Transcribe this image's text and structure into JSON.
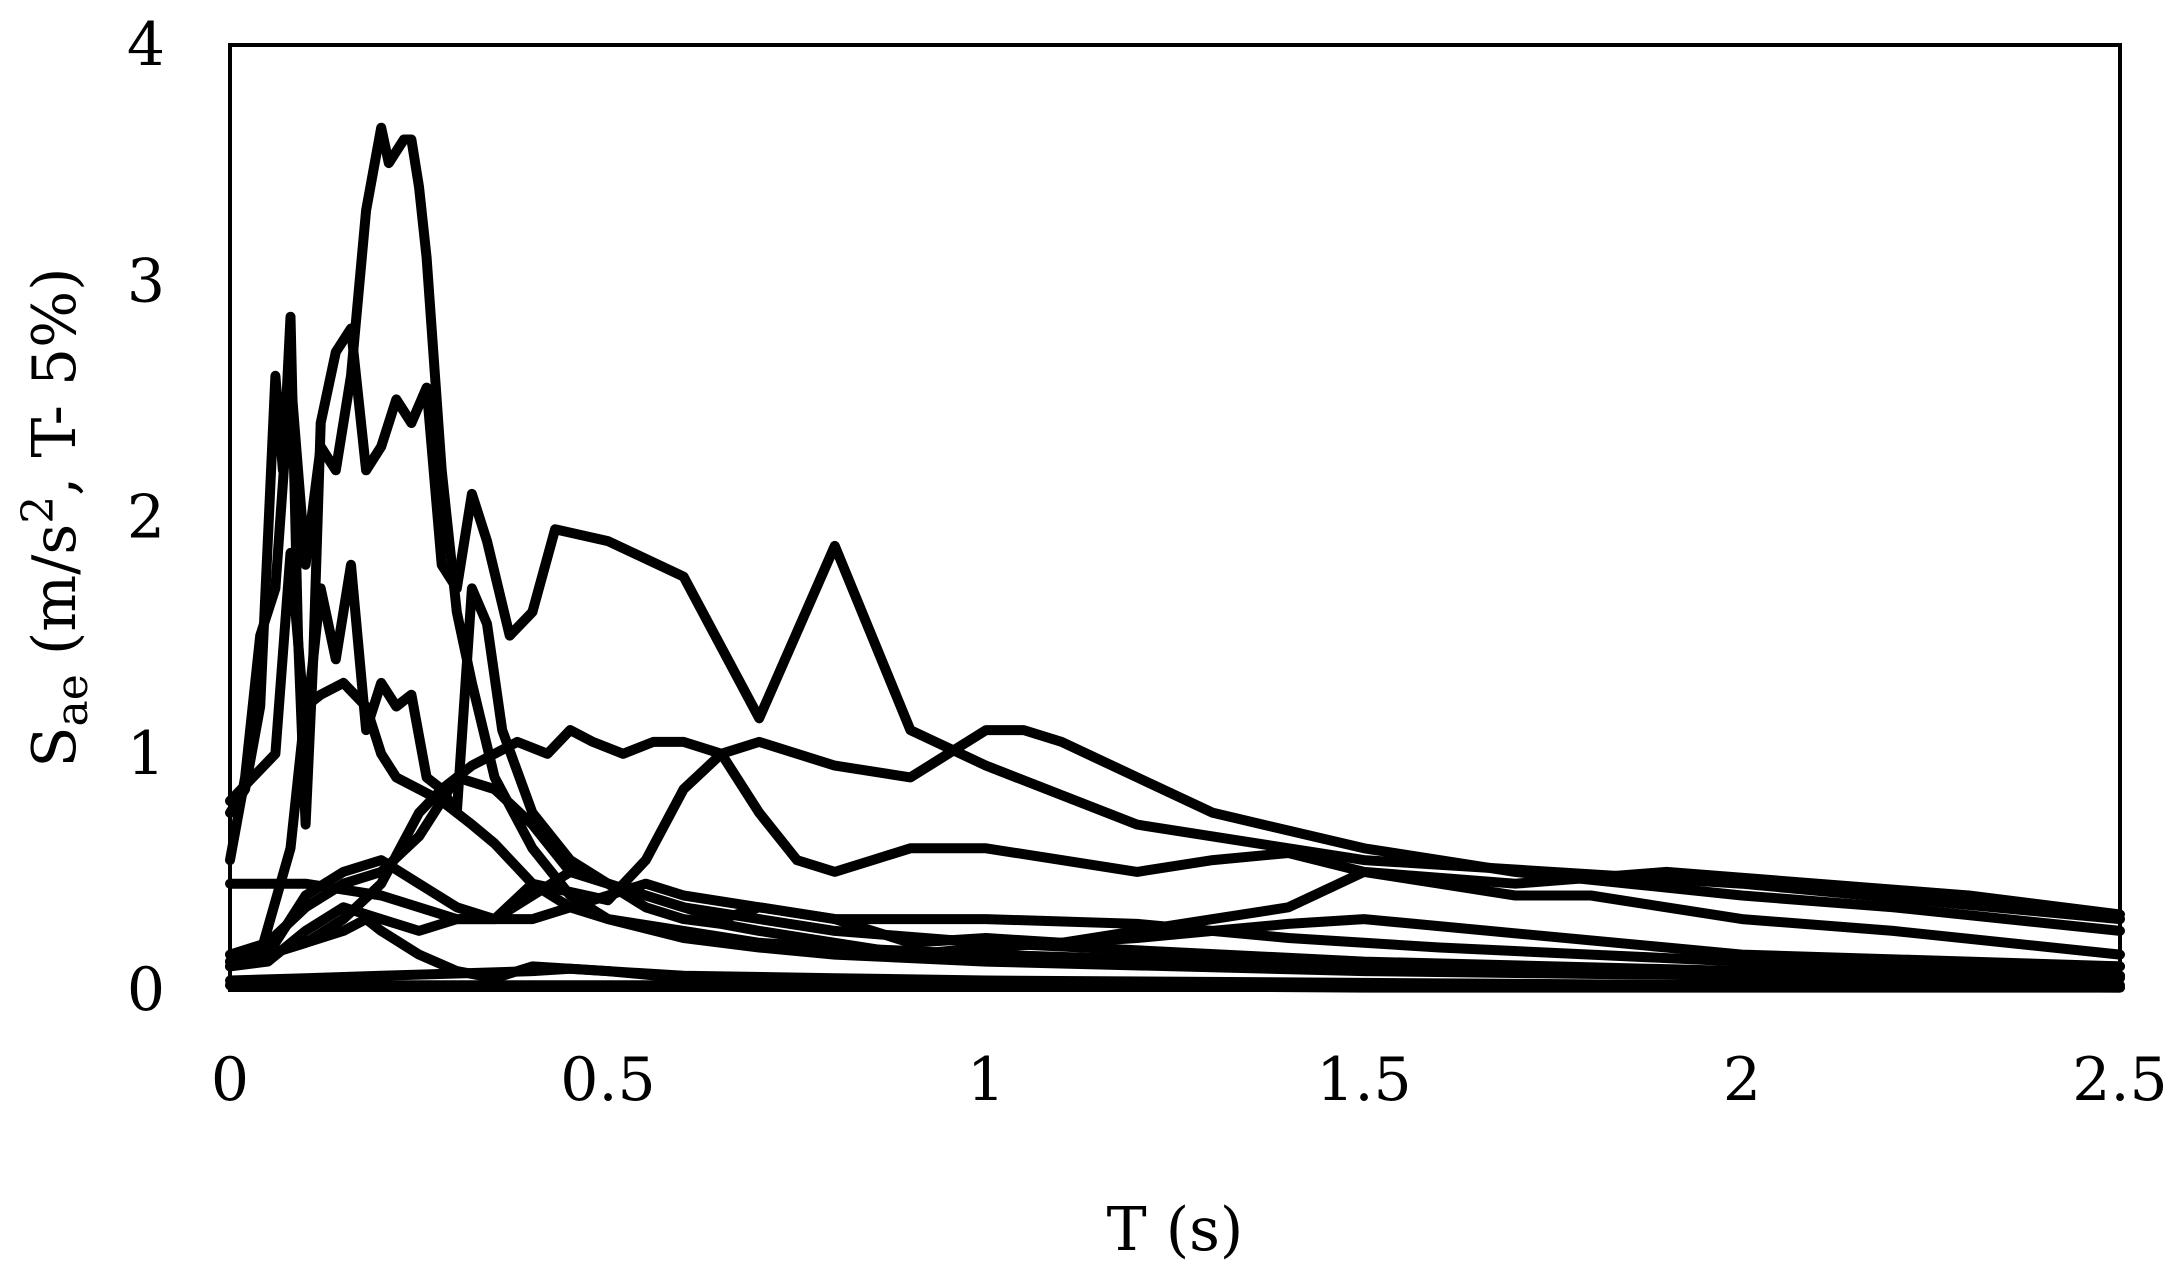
{
  "chart_data": {
    "type": "line",
    "title": "",
    "xlabel": "T (s)",
    "ylabel": {
      "main": "S",
      "subscript": "ae",
      "rest_before_sup": " (m/s",
      "superscript": "2",
      "rest_after_sup": ", T- 5%)"
    },
    "xlim": [
      0,
      2.5
    ],
    "ylim": [
      0,
      4
    ],
    "xticks": [
      0,
      0.5,
      1,
      1.5,
      2,
      2.5
    ],
    "xtick_labels": [
      "0",
      "0.5",
      "1",
      "1.5",
      "2",
      "2.5"
    ],
    "yticks": [
      0,
      1,
      2,
      3,
      4
    ],
    "ytick_labels": [
      "0",
      "1",
      "2",
      "3",
      "4"
    ],
    "grid": false,
    "legend": "none",
    "line_color": "#000000",
    "series": [
      {
        "x": [
          0,
          0.02,
          0.04,
          0.06,
          0.08,
          0.1,
          0.12,
          0.14,
          0.16,
          0.18,
          0.2,
          0.21,
          0.22,
          0.23,
          0.24,
          0.25,
          0.26,
          0.28,
          0.3,
          0.32,
          0.35,
          0.4,
          0.45,
          0.5,
          0.6,
          0.7,
          0.8,
          1.0,
          1.5,
          2.0,
          2.5
        ],
        "y": [
          0.55,
          0.9,
          1.5,
          1.7,
          2.6,
          1.8,
          2.3,
          2.2,
          2.6,
          3.3,
          3.65,
          3.5,
          3.55,
          3.6,
          3.6,
          3.4,
          3.1,
          2.2,
          1.6,
          1.3,
          0.9,
          0.6,
          0.4,
          0.3,
          0.22,
          0.18,
          0.15,
          0.12,
          0.08,
          0.06,
          0.05
        ]
      },
      {
        "x": [
          0,
          0.02,
          0.04,
          0.06,
          0.07,
          0.08,
          0.09,
          0.1,
          0.11,
          0.12,
          0.14,
          0.16,
          0.18,
          0.2,
          0.22,
          0.24,
          0.26,
          0.28,
          0.3,
          0.32,
          0.34,
          0.37,
          0.4,
          0.43,
          0.5,
          0.6,
          0.7,
          0.8,
          0.9,
          1.0,
          1.2,
          1.5,
          2.0,
          2.5
        ],
        "y": [
          0.75,
          0.85,
          1.2,
          2.6,
          2.2,
          2.85,
          1.5,
          0.7,
          1.4,
          2.4,
          2.7,
          2.8,
          2.2,
          2.3,
          2.5,
          2.4,
          2.55,
          1.8,
          1.7,
          2.1,
          1.9,
          1.5,
          1.6,
          1.95,
          1.9,
          1.75,
          1.15,
          1.88,
          1.1,
          0.95,
          0.7,
          0.55,
          0.45,
          0.3
        ]
      },
      {
        "x": [
          0,
          0.03,
          0.06,
          0.08,
          0.1,
          0.12,
          0.14,
          0.16,
          0.18,
          0.2,
          0.22,
          0.24,
          0.26,
          0.28,
          0.3,
          0.32,
          0.35,
          0.4,
          0.45,
          0.5,
          0.6,
          0.7,
          0.8,
          1.0,
          1.5,
          2.0,
          2.5
        ],
        "y": [
          0.8,
          0.9,
          1.0,
          1.85,
          1.1,
          1.7,
          1.4,
          1.8,
          1.1,
          1.3,
          1.2,
          1.25,
          0.9,
          0.85,
          0.75,
          0.7,
          0.62,
          0.45,
          0.35,
          0.3,
          0.25,
          0.2,
          0.18,
          0.15,
          0.1,
          0.08,
          0.06
        ]
      },
      {
        "x": [
          0,
          0.04,
          0.08,
          0.1,
          0.12,
          0.15,
          0.18,
          0.2,
          0.22,
          0.25,
          0.28,
          0.3,
          0.32,
          0.34,
          0.36,
          0.4,
          0.45,
          0.5,
          0.55,
          0.6,
          0.7,
          0.8,
          1.0,
          1.5,
          2.0,
          2.5
        ],
        "y": [
          0.12,
          0.15,
          0.6,
          1.2,
          1.25,
          1.3,
          1.2,
          1.0,
          0.9,
          0.85,
          0.8,
          0.75,
          1.7,
          1.55,
          1.1,
          0.75,
          0.55,
          0.45,
          0.4,
          0.35,
          0.3,
          0.25,
          0.2,
          0.12,
          0.08,
          0.06
        ]
      },
      {
        "x": [
          0,
          0.05,
          0.1,
          0.15,
          0.2,
          0.25,
          0.28,
          0.3,
          0.32,
          0.35,
          0.38,
          0.42,
          0.45,
          0.48,
          0.52,
          0.56,
          0.6,
          0.65,
          0.7,
          0.75,
          0.8,
          0.85,
          0.9,
          1.0,
          1.1,
          1.2,
          1.3,
          1.4,
          1.5,
          1.7,
          1.9,
          2.1,
          2.3,
          2.5
        ],
        "y": [
          0.1,
          0.15,
          0.2,
          0.3,
          0.45,
          0.75,
          0.85,
          0.9,
          0.95,
          1.0,
          1.05,
          1.0,
          1.1,
          1.05,
          1.0,
          1.05,
          1.05,
          1.0,
          0.75,
          0.55,
          0.5,
          0.55,
          0.6,
          0.6,
          0.55,
          0.5,
          0.55,
          0.58,
          0.5,
          0.45,
          0.5,
          0.45,
          0.4,
          0.32
        ]
      },
      {
        "x": [
          0,
          0.1,
          0.2,
          0.3,
          0.35,
          0.4,
          0.5,
          0.55,
          0.6,
          0.65,
          0.7,
          0.8,
          0.9,
          0.95,
          1.0,
          1.05,
          1.1,
          1.2,
          1.3,
          1.5,
          1.7,
          2.0,
          2.2,
          2.5
        ],
        "y": [
          0.45,
          0.45,
          0.4,
          0.3,
          0.3,
          0.45,
          0.38,
          0.55,
          0.85,
          1.0,
          1.05,
          0.95,
          0.9,
          1.0,
          1.1,
          1.1,
          1.05,
          0.9,
          0.75,
          0.6,
          0.5,
          0.4,
          0.35,
          0.25
        ]
      },
      {
        "x": [
          0,
          0.05,
          0.1,
          0.15,
          0.2,
          0.25,
          0.3,
          0.35,
          0.4,
          0.45,
          0.5,
          0.55,
          0.6,
          0.65,
          0.7,
          0.8,
          0.9,
          1.0,
          1.1,
          1.2,
          1.3,
          1.4,
          1.5,
          1.6,
          1.7,
          1.8,
          2.0,
          2.2,
          2.5
        ],
        "y": [
          0.15,
          0.2,
          0.35,
          0.45,
          0.5,
          0.65,
          0.9,
          0.85,
          0.7,
          0.5,
          0.45,
          0.35,
          0.3,
          0.28,
          0.25,
          0.2,
          0.15,
          0.18,
          0.2,
          0.25,
          0.3,
          0.35,
          0.5,
          0.45,
          0.4,
          0.4,
          0.3,
          0.25,
          0.15
        ]
      },
      {
        "x": [
          0,
          0.05,
          0.1,
          0.15,
          0.2,
          0.25,
          0.3,
          0.35,
          0.4,
          0.45,
          0.5,
          0.55,
          0.6,
          0.7,
          0.8,
          0.9,
          1.0,
          1.2,
          1.4,
          1.5,
          1.6,
          1.8,
          2.0,
          2.5
        ],
        "y": [
          0.12,
          0.15,
          0.4,
          0.5,
          0.55,
          0.45,
          0.35,
          0.3,
          0.3,
          0.35,
          0.4,
          0.45,
          0.4,
          0.35,
          0.3,
          0.3,
          0.3,
          0.28,
          0.22,
          0.2,
          0.18,
          0.15,
          0.12,
          0.1
        ]
      },
      {
        "x": [
          0,
          0.05,
          0.1,
          0.15,
          0.2,
          0.25,
          0.3,
          0.35,
          0.4,
          0.45,
          0.5,
          0.55,
          0.6,
          0.65,
          0.7,
          0.8,
          0.9,
          1.0,
          1.1,
          1.2,
          1.3,
          1.4,
          1.5,
          2.0,
          2.5
        ],
        "y": [
          0.1,
          0.12,
          0.25,
          0.35,
          0.3,
          0.25,
          0.3,
          0.3,
          0.4,
          0.5,
          0.45,
          0.4,
          0.35,
          0.3,
          0.35,
          0.3,
          0.2,
          0.22,
          0.2,
          0.22,
          0.25,
          0.28,
          0.3,
          0.15,
          0.1
        ]
      },
      {
        "x": [
          0,
          0.05,
          0.1,
          0.15,
          0.18,
          0.2,
          0.25,
          0.3,
          0.35,
          0.4,
          0.5,
          0.6,
          0.8,
          1.0,
          1.5,
          2.0,
          2.5
        ],
        "y": [
          0.1,
          0.15,
          0.2,
          0.25,
          0.3,
          0.25,
          0.15,
          0.08,
          0.05,
          0.1,
          0.08,
          0.05,
          0.04,
          0.03,
          0.02,
          0.02,
          0.01
        ]
      },
      {
        "x": [
          0,
          0.1,
          0.2,
          0.3,
          0.4,
          0.45,
          0.5,
          0.6,
          0.8,
          1.0,
          1.5,
          2.0,
          2.5
        ],
        "y": [
          0.04,
          0.05,
          0.06,
          0.07,
          0.08,
          0.09,
          0.08,
          0.06,
          0.05,
          0.04,
          0.03,
          0.02,
          0.02
        ]
      },
      {
        "x": [
          0,
          0.5,
          1.0,
          1.5,
          2.0,
          2.5
        ],
        "y": [
          0.02,
          0.02,
          0.02,
          0.01,
          0.01,
          0.01
        ]
      }
    ]
  }
}
